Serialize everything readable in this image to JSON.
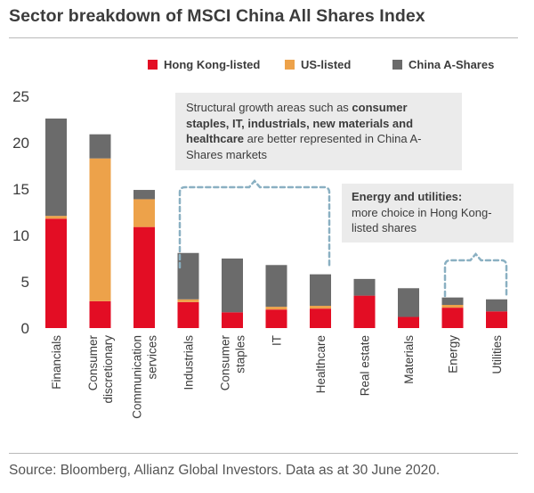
{
  "title": "Sector breakdown of MSCI China All Shares Index",
  "source": "Source: Bloomberg, Allianz Global Investors. Data as at 30 June 2020.",
  "colors": {
    "hong_kong": "#e30d24",
    "us": "#eda24a",
    "china_a": "#6b6b6b",
    "bracket": "#8ab0c2",
    "note_bg": "#ebebeb"
  },
  "annotations": {
    "growth": {
      "text_before": "Structural growth areas such as ",
      "bold": "consumer staples, IT, industrials, new materials and healthcare",
      "text_after": " are better represented in China A-Shares markets"
    },
    "energy": {
      "bold": "Energy and utilities:",
      "text": "more choice in Hong Kong-listed shares"
    }
  },
  "chart_data": {
    "type": "bar",
    "stacked": true,
    "title": "Sector breakdown of MSCI China All Shares Index",
    "xlabel": "",
    "ylabel": "",
    "ylim": [
      0,
      25
    ],
    "yticks": [
      0,
      5,
      10,
      15,
      20,
      25
    ],
    "grid": false,
    "legend_position": "top-right",
    "categories": [
      "Financials",
      "Consumer discretionary",
      "Communication services",
      "Industrials",
      "Consumer staples",
      "IT",
      "Healthcare",
      "Real estate",
      "Materials",
      "Energy",
      "Utilities"
    ],
    "category_lines": [
      [
        "Financials"
      ],
      [
        "Consumer",
        "discretionary"
      ],
      [
        "Communication",
        "services"
      ],
      [
        "Industrials"
      ],
      [
        "Consumer",
        "staples"
      ],
      [
        "IT"
      ],
      [
        "Healthcare"
      ],
      [
        "Real estate"
      ],
      [
        "Materials"
      ],
      [
        "Energy"
      ],
      [
        "Utilities"
      ]
    ],
    "series": [
      {
        "name": "Hong Kong-listed",
        "values": [
          11.8,
          2.9,
          10.9,
          2.8,
          1.7,
          2.0,
          2.1,
          3.5,
          1.2,
          2.2,
          1.8
        ]
      },
      {
        "name": "US-listed",
        "values": [
          0.3,
          15.4,
          3.0,
          0.3,
          0.0,
          0.3,
          0.3,
          0.0,
          0.0,
          0.3,
          0.0
        ]
      },
      {
        "name": "China A-Shares",
        "values": [
          10.5,
          2.6,
          1.0,
          5.0,
          5.8,
          4.5,
          3.4,
          1.8,
          3.1,
          0.8,
          1.3
        ]
      }
    ]
  }
}
